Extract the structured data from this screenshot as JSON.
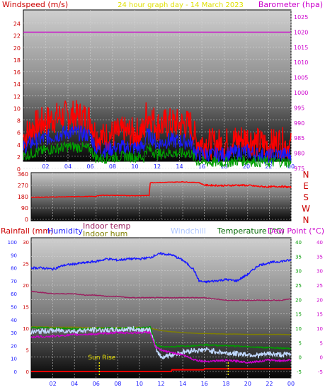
{
  "chart_data": [
    {
      "type": "line",
      "title": "24 hour graph day - 14 March 2023",
      "left_axis_label": "Windspeed (m/s)",
      "right_axis_label": "Barometer (hpa)",
      "x_ticks": [
        "02",
        "04",
        "06",
        "08",
        "10",
        "12",
        "14",
        "16",
        "18",
        "20",
        "22",
        "00"
      ],
      "left_ticks": [
        "0",
        "2",
        "4",
        "6",
        "8",
        "10",
        "12",
        "14",
        "16",
        "18",
        "20",
        "22",
        "24"
      ],
      "right_ticks": [
        "975",
        "980",
        "985",
        "990",
        "995",
        "1000",
        "1005",
        "1010",
        "1015",
        "1020",
        "1025"
      ],
      "ylim_left": [
        0,
        25
      ],
      "ylim_right": [
        975,
        1025
      ],
      "x": [
        0,
        1,
        2,
        3,
        4,
        5,
        6,
        6.5,
        7,
        8,
        9,
        10,
        10.8,
        11,
        11.5,
        12,
        13,
        14,
        15,
        15.5,
        16,
        17,
        18,
        19,
        20,
        21,
        22,
        23,
        24
      ],
      "series": [
        {
          "name": "Windspeed (m/s)",
          "axis": "left",
          "color": "#ff0000",
          "values": [
            5.2,
            7.0,
            7.8,
            8.4,
            8.8,
            8.6,
            8.2,
            5.5,
            5.0,
            5.6,
            6.0,
            5.8,
            6.2,
            8.8,
            8.5,
            7.0,
            7.5,
            7.3,
            7.2,
            4.5,
            4.3,
            4.0,
            4.1,
            4.6,
            5.0,
            4.2,
            3.8,
            4.4,
            3.5
          ]
        },
        {
          "name": "Windspeed (m/s)",
          "axis": "left",
          "color": "#1a1aff",
          "values": [
            3.5,
            4.5,
            5.0,
            5.5,
            6.0,
            5.8,
            5.5,
            3.2,
            3.0,
            3.3,
            3.5,
            3.4,
            3.5,
            5.5,
            5.2,
            4.0,
            4.6,
            4.5,
            4.4,
            2.5,
            2.4,
            2.2,
            2.3,
            2.6,
            2.8,
            2.3,
            2.0,
            2.3,
            2.2
          ]
        },
        {
          "name": "Windspeed (m/s)",
          "axis": "left",
          "color": "#00a000",
          "values": [
            2.0,
            2.6,
            3.0,
            3.3,
            3.6,
            3.5,
            3.2,
            1.8,
            1.6,
            1.8,
            2.0,
            1.9,
            1.8,
            3.2,
            3.0,
            2.3,
            2.6,
            2.5,
            2.5,
            1.2,
            1.1,
            1.0,
            1.0,
            1.2,
            1.3,
            1.1,
            1.0,
            1.1,
            1.0
          ]
        },
        {
          "name": "Barometer (hpa)",
          "axis": "right",
          "color": "#cc00cc",
          "values": [
            1020,
            1020,
            1020,
            1020,
            1020,
            1020,
            1020,
            1020,
            1020,
            1020,
            1020,
            1020,
            1020,
            1020,
            1020,
            1020,
            1020,
            1020,
            1020,
            1020,
            1020,
            1020,
            1020,
            1020,
            1020,
            1020,
            1020,
            1020,
            1020
          ]
        }
      ]
    },
    {
      "type": "line",
      "left_ticks": [
        "0",
        "90",
        "180",
        "270",
        "360"
      ],
      "right_ticks": [
        "N",
        "W",
        "S",
        "E",
        "N"
      ],
      "ylim_left": [
        0,
        360
      ],
      "x": [
        0,
        2,
        4,
        6,
        6.5,
        8,
        10,
        10.9,
        11.0,
        12,
        14,
        15.5,
        16,
        17,
        18,
        19,
        20,
        21,
        22,
        23,
        24
      ],
      "series": [
        {
          "name": "",
          "axis": "left",
          "color": "#ff0000",
          "values": [
            175,
            178,
            180,
            183,
            192,
            190,
            188,
            190,
            292,
            293,
            298,
            292,
            272,
            270,
            268,
            272,
            270,
            262,
            258,
            262,
            255
          ]
        }
      ]
    },
    {
      "type": "line",
      "labels": {
        "rainfall": "Rainfall (mm)",
        "humidity": "Humidity",
        "indoor_temp": "Indoor temp",
        "indoor_hum": "Indoor hum",
        "windchill": "Windchill",
        "temperature": "Temperature (°C)",
        "dew_point": "Dew Point (°C)"
      },
      "annotation": "Sun Rise",
      "x_ticks": [
        "02",
        "04",
        "06",
        "08",
        "10",
        "12",
        "14",
        "16",
        "18",
        "20",
        "22",
        "00"
      ],
      "humidity_ticks": [
        "0",
        "10",
        "20",
        "30",
        "40",
        "50",
        "60",
        "70",
        "80",
        "90",
        "100"
      ],
      "rain_ticks": [
        "0",
        "5",
        "10",
        "15",
        "20",
        "25",
        "30"
      ],
      "temp_ticks": [
        "-5",
        "0",
        "5",
        "10",
        "15",
        "20",
        "25",
        "30",
        "35",
        "40"
      ],
      "dew_ticks": [
        "-5",
        "0",
        "5",
        "10",
        "15",
        "20",
        "25",
        "30",
        "35",
        "40"
      ],
      "ylim_humidity": [
        0,
        100
      ],
      "ylim_rain": [
        0,
        30
      ],
      "ylim_temp": [
        -5,
        40
      ],
      "sunrise_x": 6.3,
      "second_marker_x": 18.2,
      "x": [
        0,
        1,
        2,
        3,
        4,
        5,
        6,
        7,
        8,
        9,
        10,
        11,
        11.5,
        12,
        13,
        14,
        15,
        15.5,
        16,
        17,
        18,
        19,
        20,
        21,
        22,
        23,
        24
      ],
      "series": [
        {
          "name": "Humidity",
          "axis": "humidity",
          "color": "#1a1aff",
          "values": [
            80,
            80,
            79,
            82,
            83,
            84,
            85,
            87,
            86,
            87,
            87,
            88,
            90,
            91,
            90,
            86,
            79,
            70,
            69,
            70,
            71,
            70,
            75,
            82,
            84,
            85,
            86
          ]
        },
        {
          "name": "Indoor hum",
          "axis": "humidity",
          "color": "#9b2060",
          "values": [
            62,
            61,
            60,
            60,
            60,
            59,
            59,
            58,
            58,
            57,
            57,
            57,
            57,
            57,
            57,
            57,
            57,
            57,
            57,
            56,
            55,
            55,
            55,
            55,
            55,
            55,
            56
          ]
        },
        {
          "name": "Indoor temp",
          "axis": "temp",
          "color": "#808000",
          "values": [
            10.5,
            10.5,
            10.4,
            10.4,
            10.4,
            10.3,
            10.3,
            10.2,
            10.3,
            10.3,
            10.4,
            10.0,
            9.6,
            9.2,
            8.8,
            8.5,
            8.3,
            8.2,
            8.2,
            8.1,
            8.0,
            8.0,
            7.9,
            7.9,
            7.9,
            7.9,
            7.8
          ]
        },
        {
          "name": "Temperature (°C)",
          "axis": "temp",
          "color": "#009900",
          "values": [
            10.2,
            10.2,
            10.1,
            10.0,
            9.8,
            9.8,
            10.0,
            10.1,
            10.0,
            10.1,
            10.2,
            10.4,
            4.5,
            3.6,
            3.6,
            3.8,
            4.0,
            4.2,
            4.3,
            4.1,
            4.0,
            3.8,
            3.6,
            3.4,
            3.3,
            3.1,
            3.0
          ]
        },
        {
          "name": "Windchill",
          "axis": "temp",
          "color": "#c0d8ff",
          "values": [
            8.6,
            9.0,
            9.2,
            9.2,
            9.0,
            9.3,
            9.5,
            9.3,
            9.4,
            9.8,
            9.6,
            9.4,
            3.0,
            0.0,
            0.8,
            1.7,
            2.4,
            2.2,
            2.6,
            2.0,
            1.4,
            1.2,
            1.0,
            0.6,
            1.2,
            0.8,
            1.0
          ]
        },
        {
          "name": "Dew Point (°C)",
          "axis": "temp",
          "color": "#cc00cc",
          "values": [
            7.0,
            7.1,
            7.2,
            7.5,
            7.8,
            7.9,
            8.0,
            8.3,
            8.5,
            8.4,
            8.5,
            8.6,
            3.4,
            2.3,
            1.6,
            0.8,
            -0.8,
            -1.2,
            -1.5,
            -1.3,
            -1.2,
            -1.4,
            -1.8,
            -1.5,
            -1.0,
            -1.3,
            -1.0
          ]
        },
        {
          "name": "Rainfall (mm)",
          "axis": "rain",
          "color": "#ff0000",
          "values": [
            0,
            0,
            0,
            0,
            0,
            0,
            0,
            0,
            0,
            0,
            0,
            0,
            0,
            0,
            0.4,
            0.4,
            0.4,
            0.4,
            0.6,
            0.6,
            0.6,
            0.6,
            0.6,
            0.6,
            0.6,
            0.6,
            0.6
          ]
        }
      ]
    }
  ]
}
